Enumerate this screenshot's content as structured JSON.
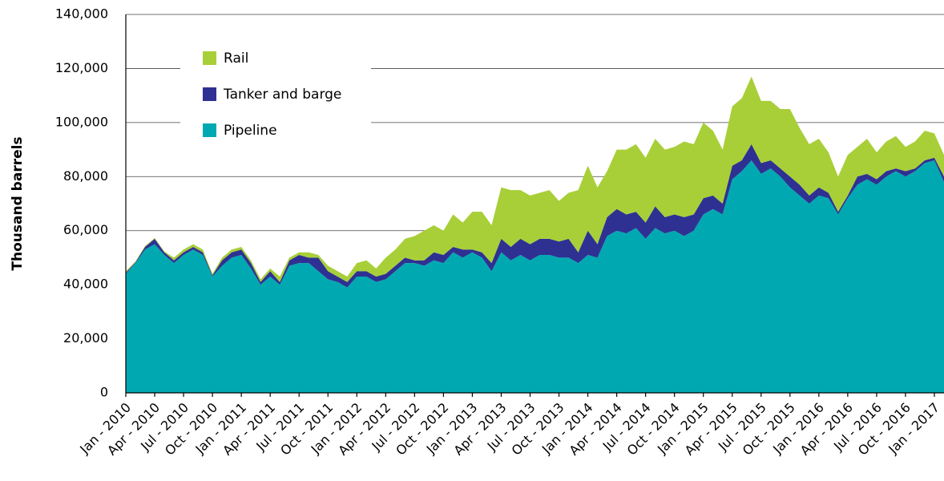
{
  "chart_data": {
    "type": "stacked_area",
    "y_label": "Thousand barrels",
    "categories": [
      "Jan - 2010",
      null,
      null,
      "Apr - 2010",
      null,
      null,
      "Jul - 2010",
      null,
      null,
      "Oct - 2010",
      null,
      null,
      "Jan - 2011",
      null,
      null,
      "Apr - 2011",
      null,
      null,
      "Jul - 2011",
      null,
      null,
      "Oct - 2011",
      null,
      null,
      "Jan - 2012",
      null,
      null,
      "Apr - 2012",
      null,
      null,
      "Jul - 2012",
      null,
      null,
      "Oct - 2012",
      null,
      null,
      "Jan - 2013",
      null,
      null,
      "Apr - 2013",
      null,
      null,
      "Jul - 2013",
      null,
      null,
      "Oct - 2013",
      null,
      null,
      "Jan - 2014",
      null,
      null,
      "Apr - 2014",
      null,
      null,
      "Jul - 2014",
      null,
      null,
      "Oct - 2014",
      null,
      null,
      "Jan - 2015",
      null,
      null,
      "Apr - 2015",
      null,
      null,
      "Jul - 2015",
      null,
      null,
      "Oct - 2015",
      null,
      null,
      "Jan - 2016",
      null,
      null,
      "Apr - 2016",
      null,
      null,
      "Jul - 2016",
      null,
      null,
      "Oct - 2016",
      null,
      null,
      "Jan - 2017",
      null
    ],
    "series": [
      {
        "name": "Pipeline",
        "color": "#00a9b1",
        "values": [
          44000,
          48000,
          53000,
          55000,
          51000,
          48000,
          51000,
          53000,
          51000,
          43000,
          47000,
          50000,
          51000,
          46000,
          40000,
          43000,
          40000,
          47000,
          48000,
          48000,
          45000,
          42000,
          41000,
          39000,
          43000,
          43000,
          41000,
          42000,
          45000,
          48000,
          48000,
          47000,
          49000,
          48000,
          52000,
          50000,
          52000,
          50000,
          45000,
          52000,
          49000,
          51000,
          49000,
          51000,
          51000,
          50000,
          50000,
          48000,
          51000,
          50000,
          58000,
          60000,
          59000,
          61000,
          57000,
          61000,
          59000,
          60000,
          58000,
          60000,
          66000,
          68000,
          66000,
          79000,
          82000,
          86000,
          81000,
          83000,
          80000,
          76000,
          73000,
          70000,
          73000,
          72000,
          66000,
          72000,
          77000,
          79000,
          77000,
          80000,
          82000,
          80000,
          82000,
          85000,
          86000,
          78000
        ]
      },
      {
        "name": "Tanker and barge",
        "color": "#2e3192",
        "values": [
          500,
          300,
          1000,
          2000,
          1000,
          1000,
          1000,
          1000,
          1000,
          500,
          2000,
          2000,
          2000,
          2000,
          1000,
          2000,
          1000,
          2000,
          3000,
          2000,
          5000,
          3000,
          2000,
          2000,
          2000,
          2000,
          2000,
          2000,
          2000,
          2000,
          1000,
          2000,
          3000,
          3000,
          2000,
          3000,
          1000,
          2000,
          3000,
          5000,
          5000,
          6000,
          6000,
          6000,
          6000,
          6000,
          7000,
          4000,
          9000,
          5000,
          7000,
          8000,
          7000,
          6000,
          6000,
          8000,
          6000,
          6000,
          7000,
          6000,
          6000,
          5000,
          4000,
          5000,
          4000,
          6000,
          4000,
          3000,
          3000,
          4000,
          4000,
          3000,
          3000,
          2000,
          1000,
          1000,
          3000,
          2000,
          2000,
          2000,
          1000,
          2000,
          1000,
          1000,
          1000,
          2000
        ]
      },
      {
        "name": "Rail",
        "color": "#a8cf38",
        "values": [
          500,
          300,
          300,
          300,
          300,
          1000,
          1000,
          1000,
          1000,
          500,
          1000,
          1000,
          1000,
          1000,
          1000,
          1000,
          2000,
          1000,
          1000,
          2000,
          1000,
          2000,
          2000,
          2000,
          3000,
          4000,
          3000,
          6000,
          6000,
          7000,
          9000,
          11000,
          10000,
          9000,
          12000,
          10000,
          14000,
          15000,
          14000,
          19000,
          21000,
          18000,
          18000,
          17000,
          18000,
          15000,
          17000,
          23000,
          24000,
          21000,
          17000,
          22000,
          24000,
          25000,
          24000,
          25000,
          25000,
          25000,
          28000,
          26000,
          28000,
          24000,
          20000,
          22000,
          23000,
          25000,
          23000,
          22000,
          22000,
          25000,
          21000,
          19000,
          18000,
          15000,
          13000,
          15000,
          11000,
          13000,
          10000,
          11000,
          12000,
          9000,
          10000,
          11000,
          9000,
          8000
        ]
      }
    ],
    "ylim": [
      0,
      140000
    ],
    "yticks": [
      0,
      {
        "value": 20000,
        "label": "20,000"
      },
      {
        "value": 40000,
        "label": "40,000"
      },
      {
        "value": 60000,
        "label": "60,000"
      },
      {
        "value": 80000,
        "label": "80,000"
      },
      {
        "value": 100000,
        "label": "100,000"
      },
      {
        "value": 120000,
        "label": "120,000"
      },
      {
        "value": 140000,
        "label": "140,000"
      }
    ],
    "grid": true,
    "legend": "upper left"
  }
}
